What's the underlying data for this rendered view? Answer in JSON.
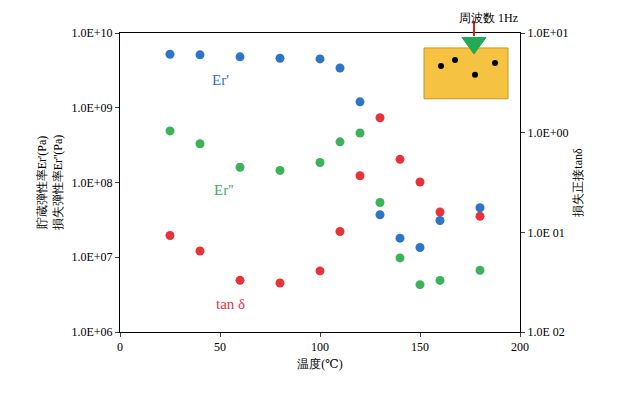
{
  "chart_data": {
    "type": "scatter",
    "x_label": "温度(℃)",
    "y_label": [
      "貯蔵弾性率Er'(Pa)",
      "損失弾性率Er''(Pa)"
    ],
    "y2_label": "損失正接tanδ",
    "annotations": [
      "周波数 1Hz"
    ],
    "x": [
      25,
      40,
      60,
      80,
      100,
      110,
      120,
      130,
      140,
      150,
      160,
      180
    ],
    "series": [
      {
        "name": "Er'",
        "color": "#2e75c8",
        "marker": "circle",
        "values": [
          5200000000.0,
          5100000000.0,
          4800000000.0,
          4600000000.0,
          4500000000.0,
          3400000000.0,
          1200000000.0,
          37000000.0,
          18000000.0,
          13500000.0,
          31000000.0,
          46000000.0
        ]
      },
      {
        "name": "Er''",
        "color": "#3cb35a",
        "marker": "circle",
        "values": [
          490000000.0,
          330000000.0,
          160000000.0,
          145000000.0,
          185000000.0,
          350000000.0,
          460000000.0,
          54000000.0,
          9800000.0,
          4300000.0,
          4900000.0,
          6700000.0
        ]
      },
      {
        "name": "tan δ",
        "color": "#e8333a",
        "marker": "circle",
        "axis": "y2",
        "values": [
          0.093,
          0.065,
          0.033,
          0.031,
          0.041,
          0.102,
          0.37,
          1.41,
          0.54,
          0.32,
          0.16,
          0.145
        ]
      }
    ],
    "xlim": [
      0,
      200
    ],
    "xticks": [
      0,
      50,
      100,
      150,
      200
    ],
    "ylim": [
      1000000.0,
      10000000000.0
    ],
    "yticks": [
      {
        "value": 1000000.0,
        "label": "1.0E+06"
      },
      {
        "value": 10000000.0,
        "label": "1.0E+07"
      },
      {
        "value": 100000000.0,
        "label": "1.0E+08"
      },
      {
        "value": 1000000000.0,
        "label": "1.0E+09"
      },
      {
        "value": 10000000000.0,
        "label": "1.0E+10"
      }
    ],
    "y2lim": [
      0.01,
      10
    ],
    "y2ticks": [
      {
        "value": 0.01,
        "label": "1.0E 02"
      },
      {
        "value": 0.1,
        "label": "1.0E 01"
      },
      {
        "value": 1,
        "label": "1.0E+00"
      },
      {
        "value": 10,
        "label": "1.0E+01"
      }
    ],
    "log": "y",
    "grid": false
  }
}
